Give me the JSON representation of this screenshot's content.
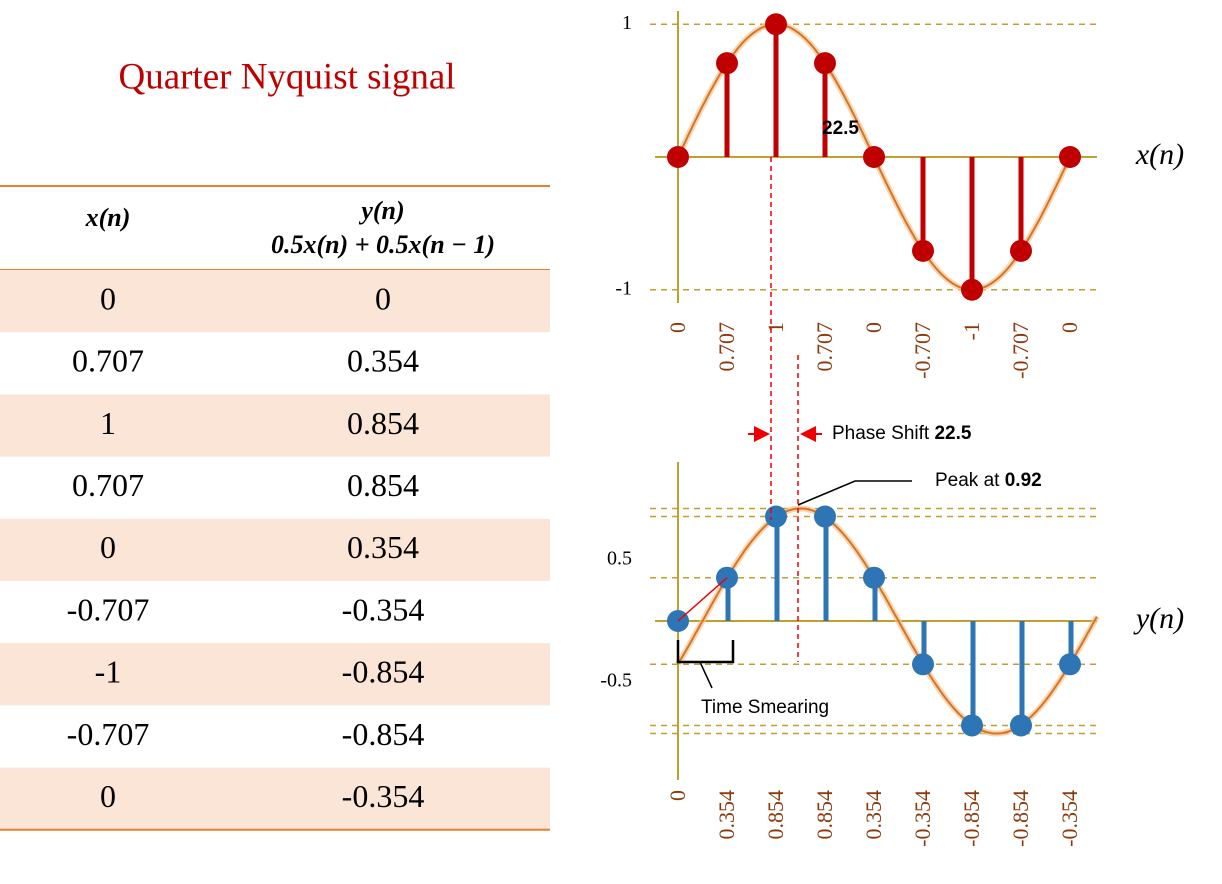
{
  "title": "Quarter Nyquist signal",
  "table": {
    "headers": [
      "x(n)",
      "y(n)"
    ],
    "header_formula": "0.5x(n) + 0.5x(n − 1)",
    "rows": [
      [
        0,
        0
      ],
      [
        0.707,
        0.354
      ],
      [
        1,
        0.854
      ],
      [
        0.707,
        0.854
      ],
      [
        0,
        0.354
      ],
      [
        -0.707,
        -0.354
      ],
      [
        -1,
        -0.854
      ],
      [
        -0.707,
        -0.854
      ],
      [
        0,
        -0.354
      ]
    ]
  },
  "chart_data": [
    {
      "type": "stem",
      "axis_label": "x(n)",
      "color": "#C00000",
      "values": [
        0,
        0.707,
        1,
        0.707,
        0,
        -0.707,
        -1,
        -0.707,
        0
      ],
      "ylim": [
        -1.1,
        1.1
      ],
      "yticks": [
        1,
        -1
      ],
      "angle_note": 22.5
    },
    {
      "type": "stem",
      "axis_label": "y(n)",
      "color": "#2E75B6",
      "values": [
        0,
        0.354,
        0.854,
        0.854,
        0.354,
        -0.354,
        -0.854,
        -0.854,
        -0.354
      ],
      "ylim": [
        -1.3,
        1.3
      ],
      "yticks": [
        0.5,
        -0.5
      ],
      "phase_label": "Phase Shift",
      "phase": 22.5,
      "peak_label": "Peak at",
      "peak": 0.92,
      "note": "Time Smearing"
    }
  ]
}
